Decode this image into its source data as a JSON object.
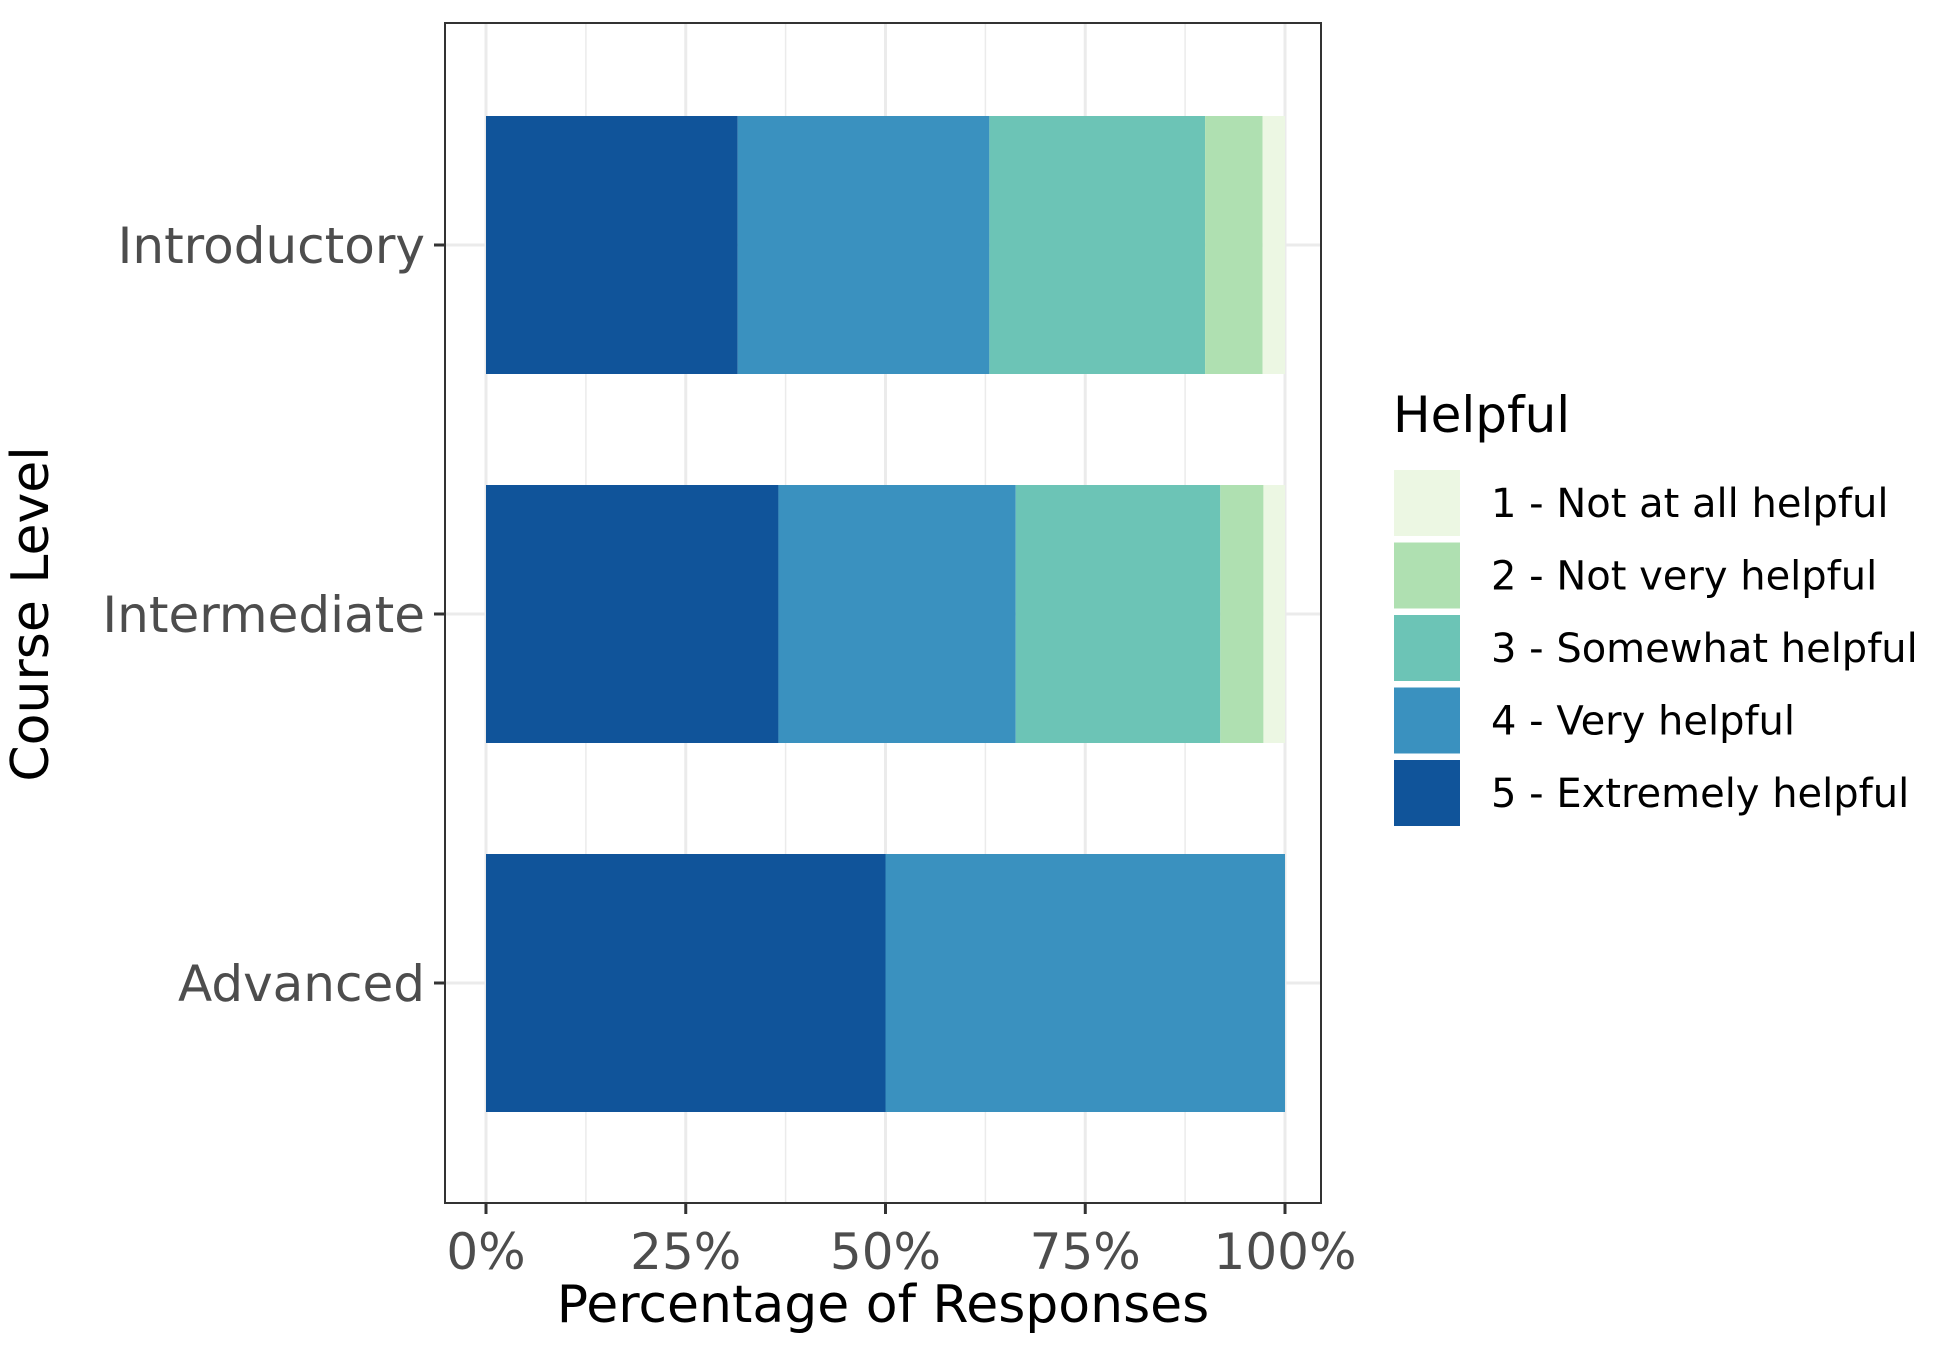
{
  "chart_data": {
    "type": "bar",
    "orientation": "horizontal",
    "stacked": true,
    "title": "",
    "xlabel": "Percentage of Responses",
    "ylabel": "Course Level",
    "xlim": [
      0,
      100
    ],
    "x_ticks": [
      "0%",
      "25%",
      "50%",
      "75%",
      "100%"
    ],
    "x_tick_values": [
      0,
      25,
      50,
      75,
      100
    ],
    "grid": true,
    "legend_position": "right",
    "legend_title": "Helpful",
    "categories": [
      "Introductory",
      "Intermediate",
      "Advanced"
    ],
    "series": [
      {
        "name": "5 - Extremely helpful",
        "color": "#10549a",
        "values": [
          31.5,
          36.6,
          50.0
        ]
      },
      {
        "name": "4 - Very helpful",
        "color": "#3a91bf",
        "values": [
          31.5,
          29.7,
          50.0
        ]
      },
      {
        "name": "3 - Somewhat helpful",
        "color": "#6cc4b6",
        "values": [
          27.0,
          25.6,
          0
        ]
      },
      {
        "name": "2 - Not very helpful",
        "color": "#afe0b1",
        "values": [
          7.2,
          5.4,
          0
        ]
      },
      {
        "name": "1 - Not at all helpful",
        "color": "#ecf7e3",
        "values": [
          2.8,
          2.7,
          0
        ]
      }
    ],
    "legend_order": [
      "1 - Not at all helpful",
      "2 - Not very helpful",
      "3 - Somewhat helpful",
      "4 - Very helpful",
      "5 - Extremely helpful"
    ]
  }
}
